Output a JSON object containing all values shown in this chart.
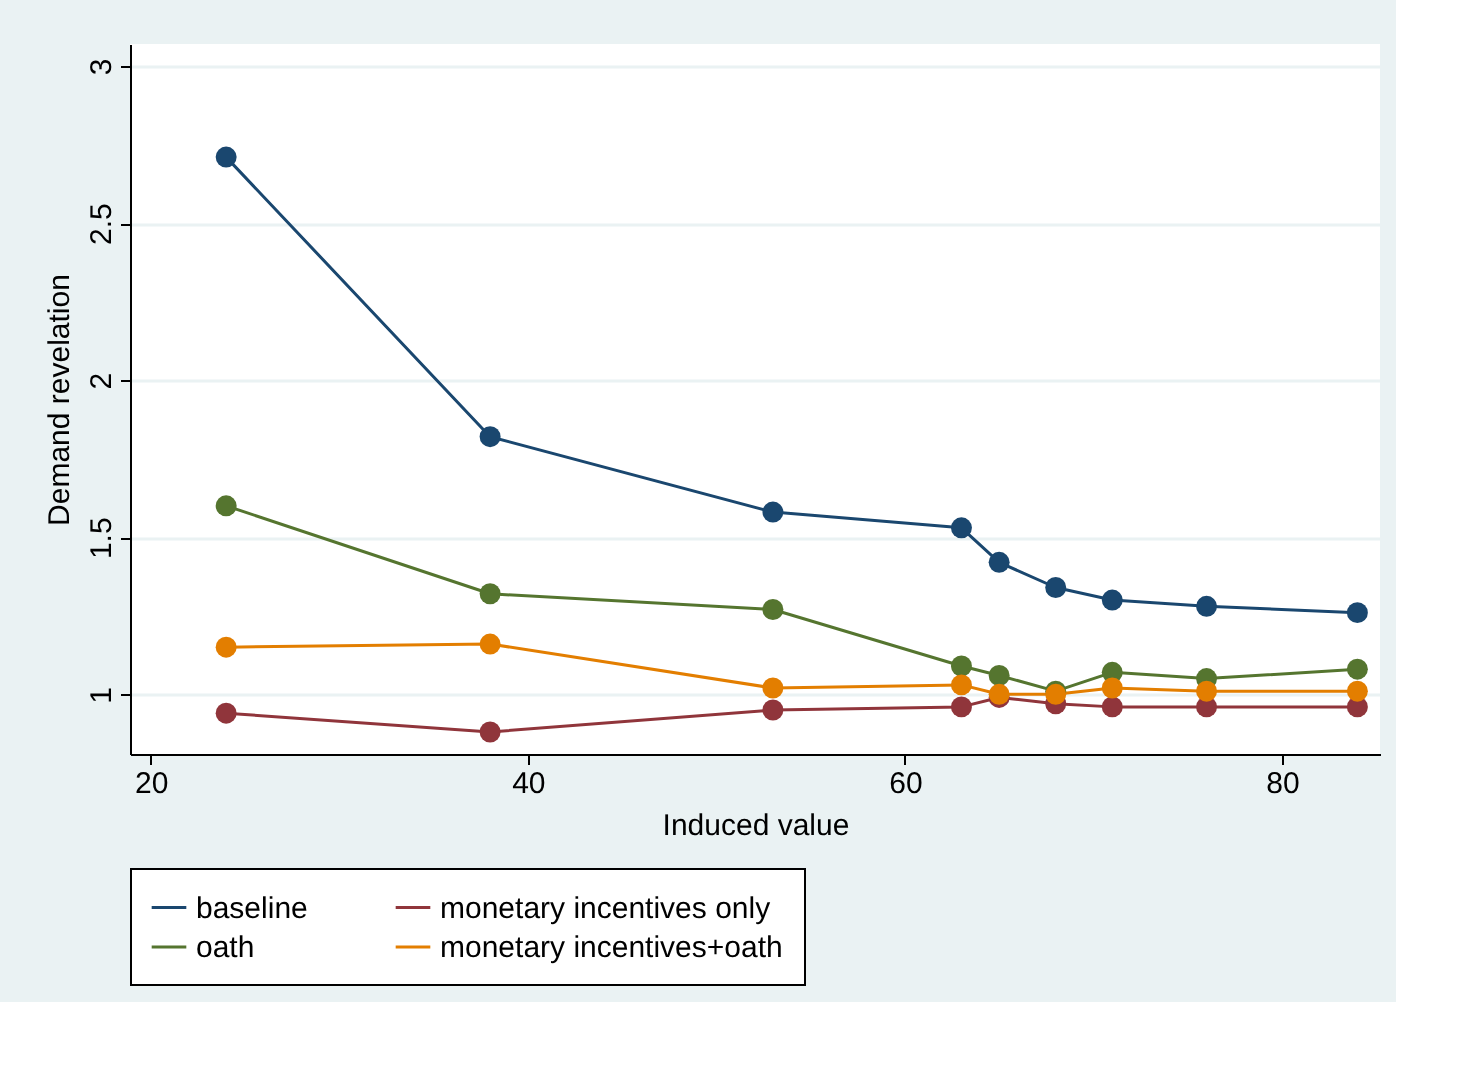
{
  "chart_data": {
    "type": "line",
    "xlabel": "Induced value",
    "ylabel": "Demand revelation",
    "x": [
      24,
      38,
      53,
      63,
      65,
      68,
      71,
      76,
      84
    ],
    "series": [
      {
        "name": "baseline",
        "color": "#1a476f",
        "values": [
          2.71,
          1.82,
          1.58,
          1.53,
          1.42,
          1.34,
          1.3,
          1.28,
          1.26
        ]
      },
      {
        "name": "monetary incentives only",
        "color": "#90353b",
        "values": [
          0.94,
          0.88,
          0.95,
          0.96,
          0.99,
          0.97,
          0.96,
          0.96,
          0.96
        ]
      },
      {
        "name": "oath",
        "color": "#55752f",
        "values": [
          1.6,
          1.32,
          1.27,
          1.09,
          1.06,
          1.01,
          1.07,
          1.05,
          1.08
        ]
      },
      {
        "name": "monetary incentives+oath",
        "color": "#e37e00",
        "values": [
          1.15,
          1.16,
          1.02,
          1.03,
          1.0,
          1.0,
          1.02,
          1.01,
          1.01
        ]
      }
    ],
    "xlim": [
      18.9,
      85.2
    ],
    "ylim": [
      0.81,
      3.07
    ],
    "xticks": [
      20,
      40,
      60,
      80
    ],
    "yticks": [
      1,
      1.5,
      2,
      2.5,
      3
    ],
    "grid": "y",
    "legend": "bottom",
    "marker": "circle",
    "line_style": "solid"
  }
}
